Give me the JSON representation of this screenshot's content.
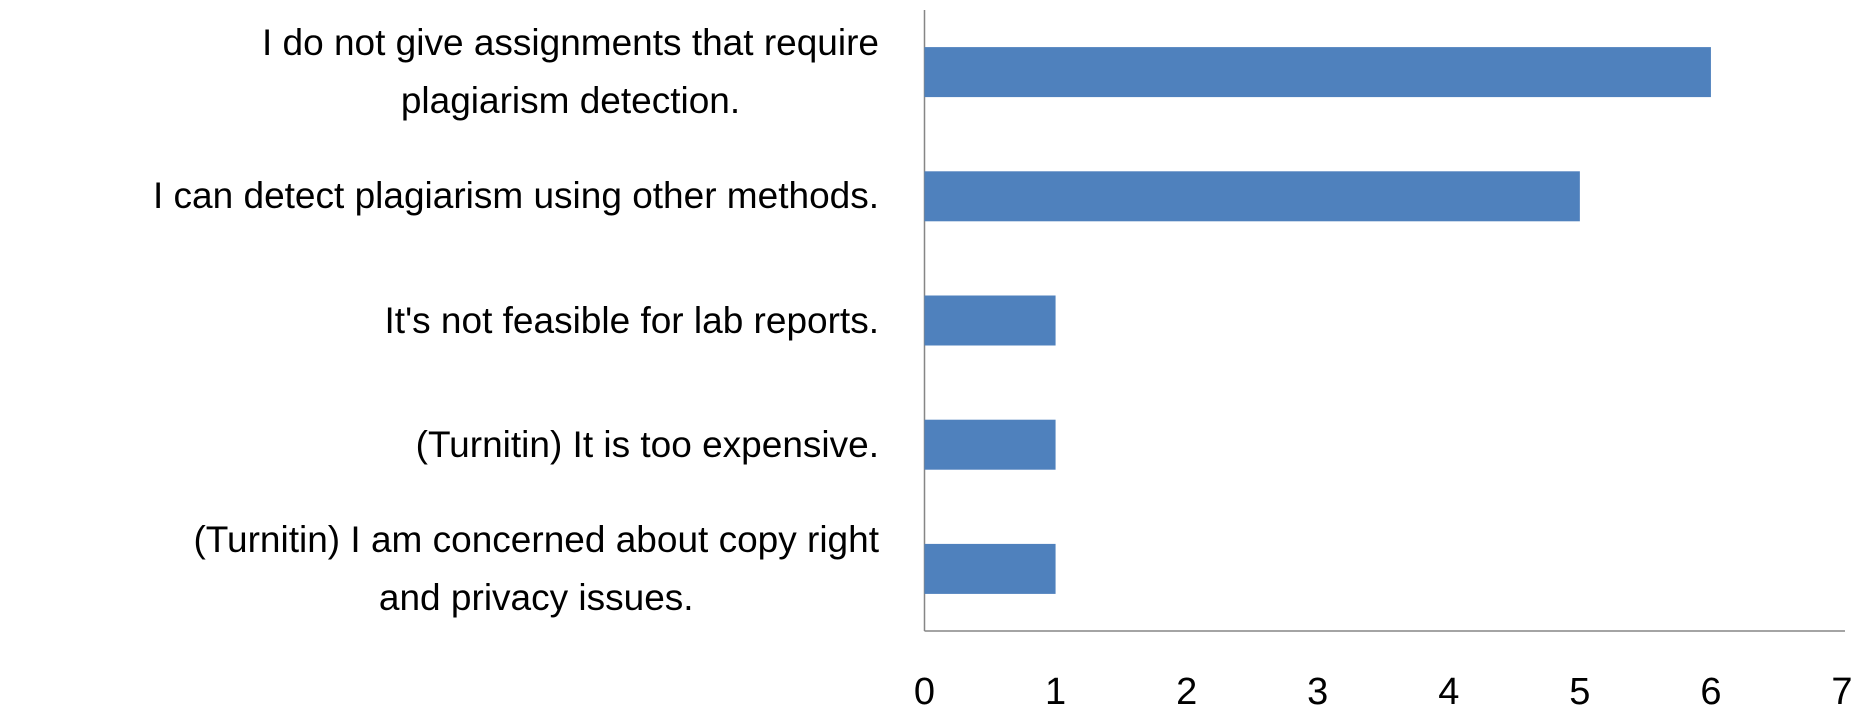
{
  "chart_data": {
    "type": "barh",
    "categories": [
      "I do not give assignments that require\nplagiarism detection.",
      "I can detect plagiarism using other methods.",
      "It's not feasible for lab reports.",
      "(Turnitin) It is too expensive.",
      "(Turnitin) I am concerned about copy right\nand privacy issues."
    ],
    "values": [
      6,
      5,
      1,
      1,
      1
    ],
    "color": "#4f81bd",
    "xlim": [
      0,
      7
    ],
    "xticks": [
      0,
      1,
      2,
      3,
      4,
      5,
      6,
      7
    ],
    "grid": false
  }
}
